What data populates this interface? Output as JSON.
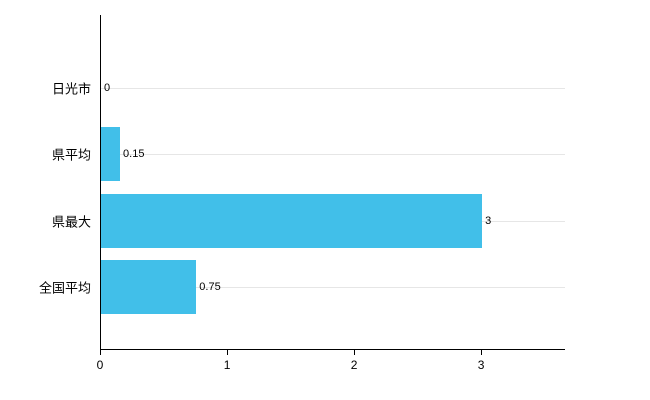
{
  "chart_data": {
    "type": "bar",
    "orientation": "horizontal",
    "title": "",
    "xlabel": "",
    "ylabel": "",
    "categories": [
      "日光市",
      "県平均",
      "県最大",
      "全国平均"
    ],
    "values": [
      0,
      0.15,
      3,
      0.75
    ],
    "value_labels": [
      "0",
      "0.15",
      "3",
      "0.75"
    ],
    "x_ticks": [
      0,
      1,
      2,
      3
    ],
    "x_tick_labels": [
      "0",
      "1",
      "2",
      "3"
    ],
    "xlim": [
      0,
      3.66
    ],
    "grid": true,
    "legend": "none",
    "colors": {
      "bar": "#41BFE9",
      "grid": "#e6e6e6",
      "axis": "#000000",
      "text": "#000000",
      "background": "#ffffff"
    }
  }
}
